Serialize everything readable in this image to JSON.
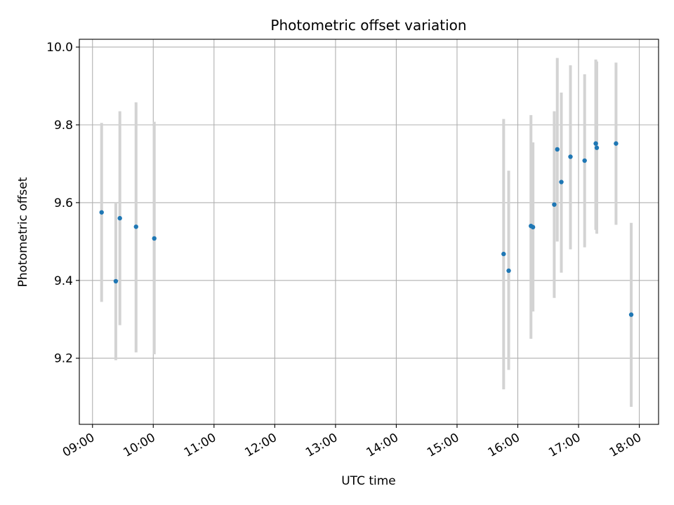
{
  "chart_data": {
    "type": "scatter",
    "title": "Photometric offset variation",
    "xlabel": "UTC time",
    "ylabel": "Photometric offset",
    "x_tick_labels": [
      "09:00",
      "10:00",
      "11:00",
      "12:00",
      "13:00",
      "14:00",
      "15:00",
      "16:00",
      "17:00",
      "18:00"
    ],
    "y_tick_labels": [
      "9.2",
      "9.4",
      "9.6",
      "9.8",
      "10.0"
    ],
    "y_ticks": [
      9.2,
      9.4,
      9.6,
      9.8,
      10.0
    ],
    "xlim": [
      "08:47",
      "18:19"
    ],
    "ylim": [
      9.03,
      10.02
    ],
    "grid": true,
    "colors": {
      "points": "#1f77b4",
      "errorbars": "#d3d3d3",
      "grid": "#b0b0b0"
    },
    "series": [
      {
        "x": [
          "09:09",
          "09:23",
          "09:27",
          "09:43",
          "10:01",
          "15:46",
          "15:51",
          "16:13",
          "16:15",
          "16:36",
          "16:39",
          "16:43",
          "16:52",
          "17:06",
          "17:17",
          "17:18",
          "17:37",
          "17:52"
        ],
        "y": [
          9.575,
          9.398,
          9.56,
          9.538,
          9.508,
          9.468,
          9.425,
          9.54,
          9.537,
          9.595,
          9.737,
          9.653,
          9.718,
          9.708,
          9.752,
          9.741,
          9.752,
          9.312
        ],
        "y_low": [
          9.345,
          9.195,
          9.285,
          9.215,
          9.21,
          9.12,
          9.17,
          9.25,
          9.32,
          9.355,
          9.5,
          9.42,
          9.48,
          9.485,
          9.53,
          9.52,
          9.543,
          9.075
        ],
        "y_high": [
          9.805,
          9.6,
          9.835,
          9.858,
          9.808,
          9.815,
          9.682,
          9.825,
          9.755,
          9.835,
          9.972,
          9.883,
          9.953,
          9.93,
          9.968,
          9.963,
          9.96,
          9.548
        ]
      }
    ]
  }
}
